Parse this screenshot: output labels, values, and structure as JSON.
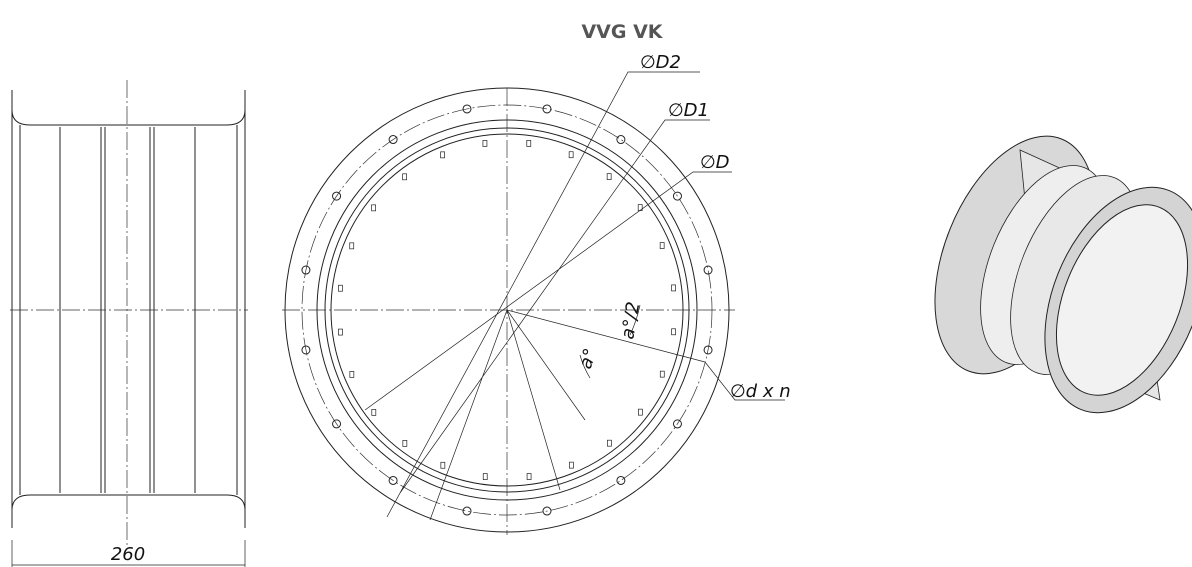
{
  "title": "VVG VK",
  "labels": {
    "d2": "∅D2",
    "d1": "∅D1",
    "d": "∅D",
    "angle": "a°",
    "half_angle": "a°/2",
    "holes": "∅d x n",
    "length": "260"
  }
}
